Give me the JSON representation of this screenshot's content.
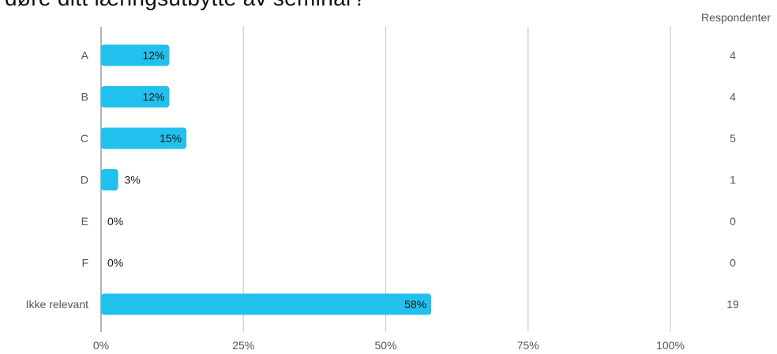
{
  "title": "døre ditt læringsutbytte av seminar?",
  "respondents_header": "Respondenter",
  "chart_data": {
    "type": "bar",
    "orientation": "horizontal",
    "categories": [
      "A",
      "B",
      "C",
      "D",
      "E",
      "F",
      "Ikke relevant"
    ],
    "values": [
      12,
      12,
      15,
      3,
      0,
      0,
      58
    ],
    "value_labels": [
      "12%",
      "12%",
      "15%",
      "3%",
      "0%",
      "0%",
      "58%"
    ],
    "respondents": [
      4,
      4,
      5,
      1,
      0,
      0,
      19
    ],
    "xlim": [
      0,
      100
    ],
    "xticks": [
      0,
      25,
      50,
      75,
      100
    ],
    "xtick_labels": [
      "0%",
      "25%",
      "50%",
      "75%",
      "100%"
    ],
    "grid": true,
    "bar_color": "#21c1ee",
    "grid_color": "#cccccc"
  }
}
